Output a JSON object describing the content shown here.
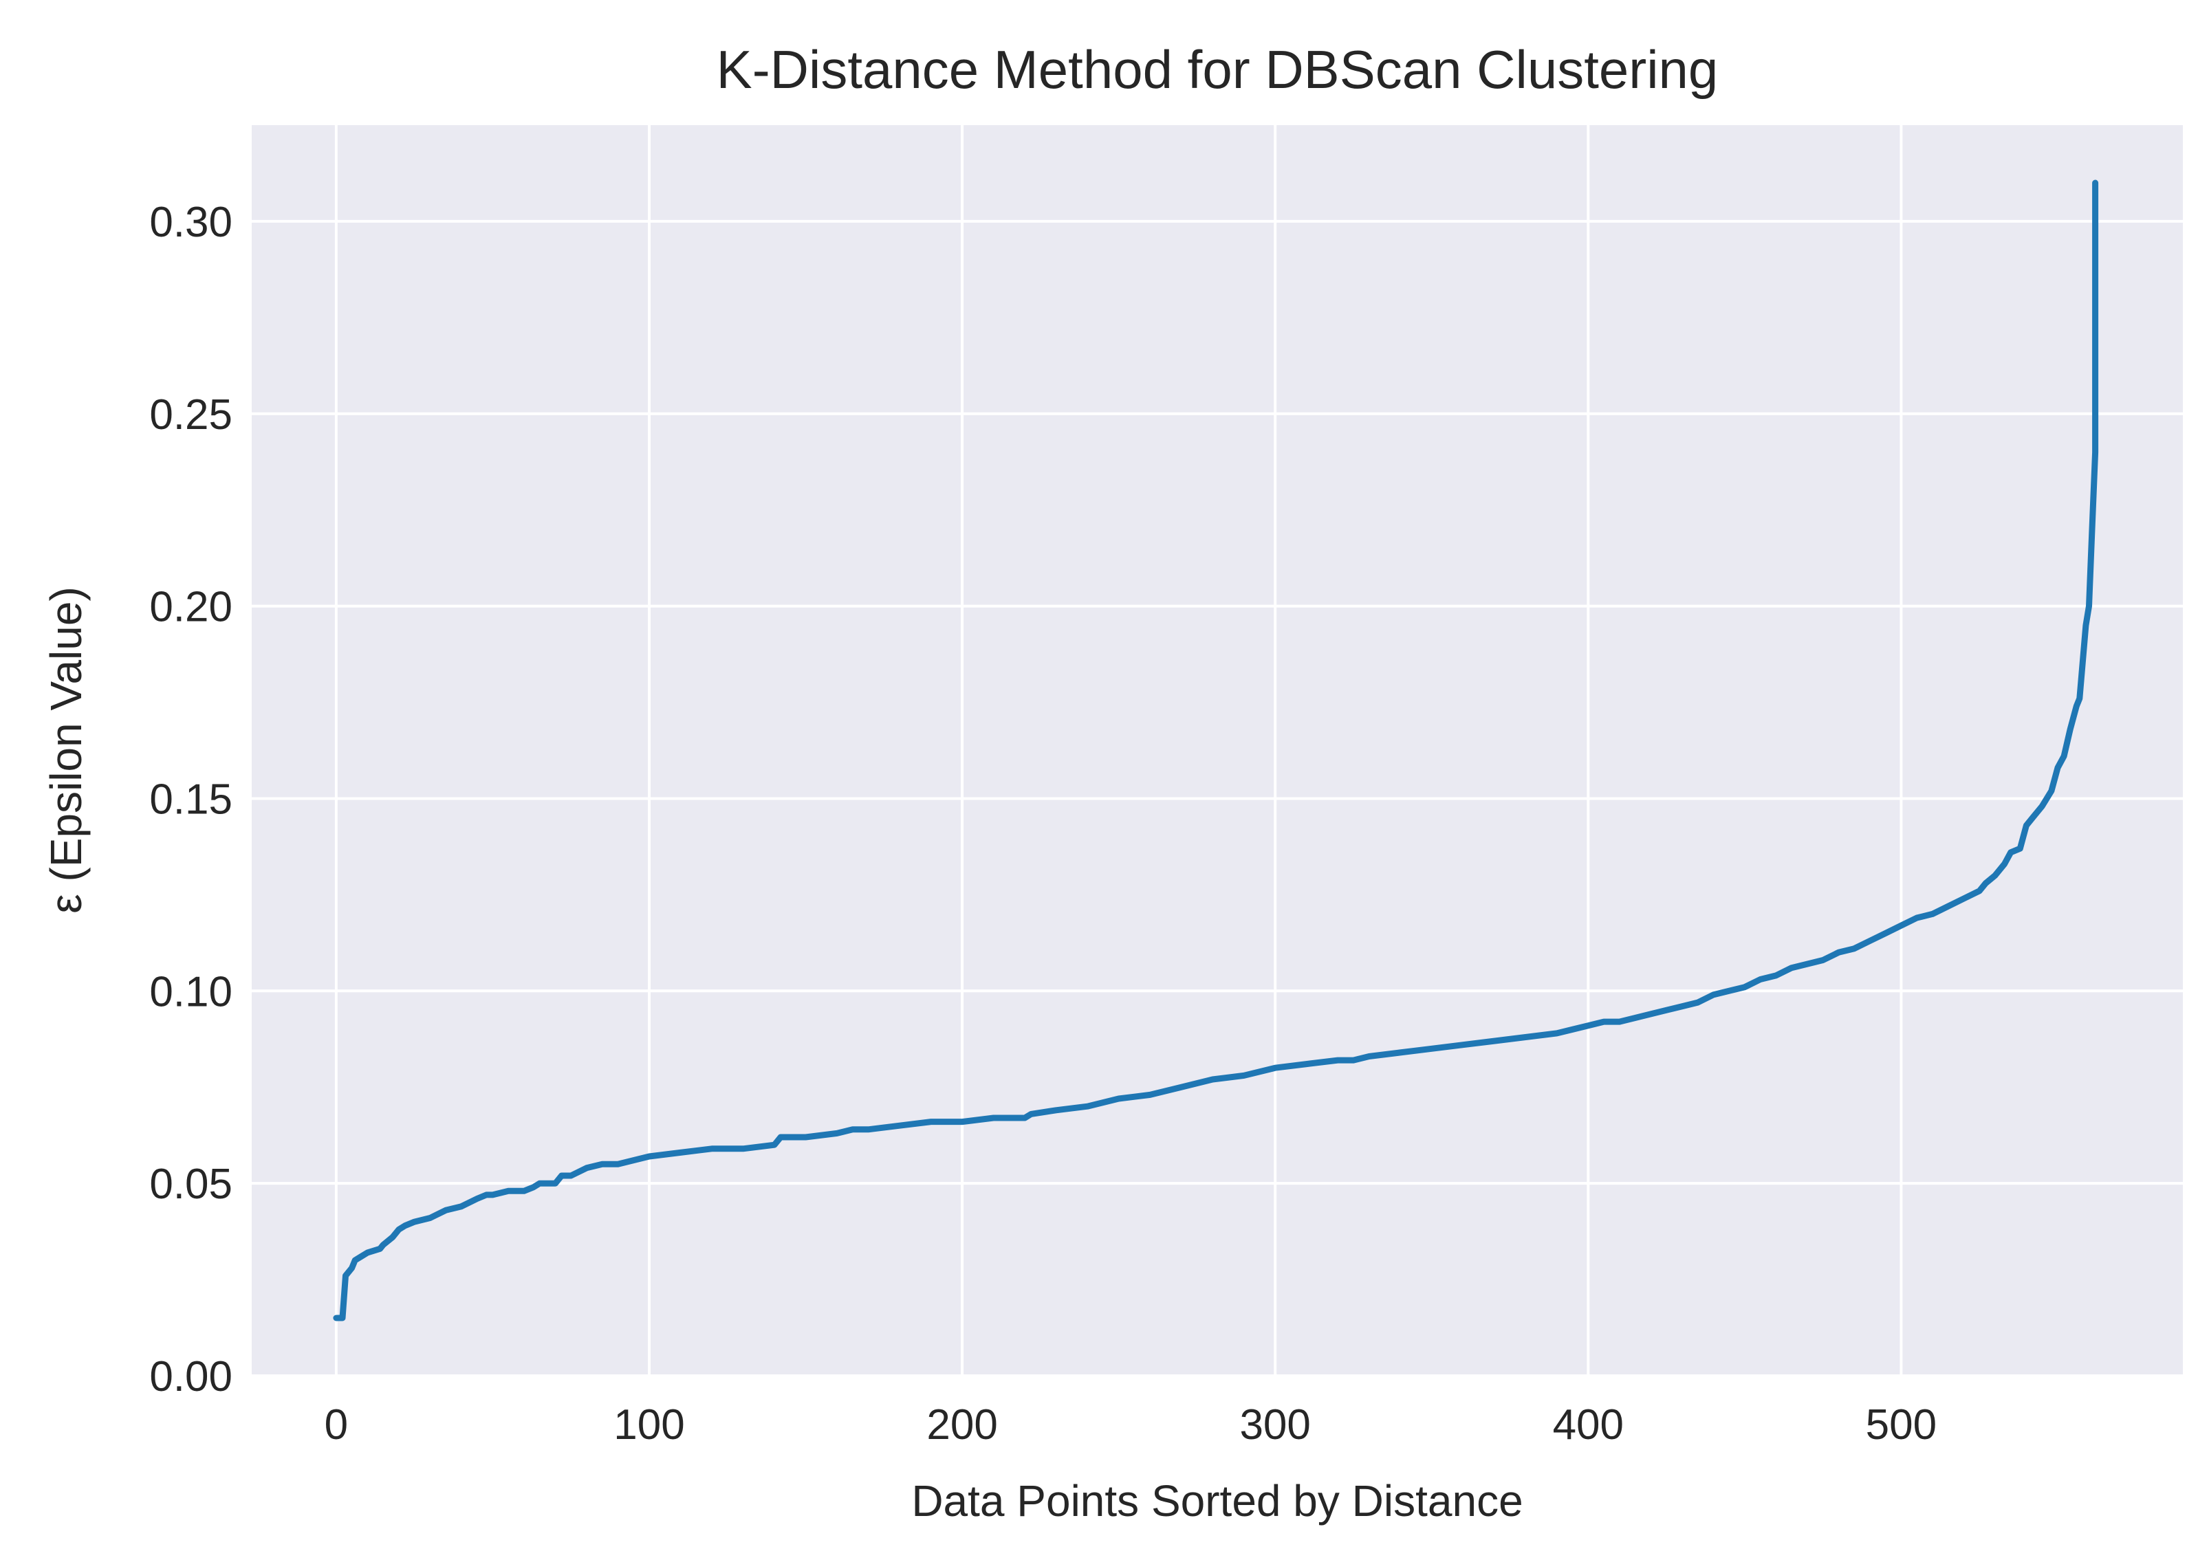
{
  "chart_data": {
    "type": "line",
    "title": "K-Distance Method for DBScan Clustering",
    "xlabel": "Data Points Sorted by Distance",
    "ylabel": "ε (Epsilon Value)",
    "xlim": [
      -27,
      590
    ],
    "ylim": [
      0.0,
      0.325
    ],
    "xticks": [
      0,
      100,
      200,
      300,
      400,
      500
    ],
    "xtick_labels": [
      "0",
      "100",
      "200",
      "300",
      "400",
      "500"
    ],
    "yticks": [
      0.0,
      0.05,
      0.1,
      0.15,
      0.2,
      0.25,
      0.3
    ],
    "ytick_labels": [
      "0.00",
      "0.05",
      "0.10",
      "0.15",
      "0.20",
      "0.25",
      "0.30"
    ],
    "grid": true,
    "background": "#EAEAF2",
    "grid_color": "#FFFFFF",
    "line_color": "#1F77B4",
    "series": [
      {
        "x": [
          0,
          2,
          3,
          5,
          6,
          8,
          10,
          14,
          15,
          18,
          20,
          22,
          25,
          30,
          35,
          40,
          45,
          48,
          50,
          55,
          60,
          63,
          65,
          70,
          72,
          75,
          80,
          85,
          90,
          95,
          100,
          110,
          120,
          130,
          140,
          142,
          150,
          160,
          165,
          170,
          180,
          190,
          200,
          210,
          220,
          222,
          230,
          240,
          250,
          260,
          270,
          280,
          290,
          300,
          310,
          320,
          325,
          330,
          340,
          350,
          360,
          370,
          380,
          390,
          400,
          405,
          410,
          415,
          420,
          425,
          430,
          435,
          440,
          445,
          450,
          455,
          460,
          465,
          470,
          475,
          480,
          485,
          490,
          495,
          500,
          505,
          510,
          515,
          520,
          525,
          527,
          530,
          533,
          535,
          538,
          540,
          542,
          545,
          548,
          550,
          552,
          554,
          556,
          557,
          559,
          560,
          561
        ],
        "y": [
          0.015,
          0.015,
          0.026,
          0.028,
          0.03,
          0.031,
          0.032,
          0.033,
          0.034,
          0.036,
          0.038,
          0.039,
          0.04,
          0.041,
          0.043,
          0.044,
          0.046,
          0.047,
          0.047,
          0.048,
          0.048,
          0.049,
          0.05,
          0.05,
          0.052,
          0.052,
          0.054,
          0.055,
          0.055,
          0.056,
          0.057,
          0.058,
          0.059,
          0.059,
          0.06,
          0.062,
          0.062,
          0.063,
          0.064,
          0.064,
          0.065,
          0.066,
          0.066,
          0.067,
          0.067,
          0.068,
          0.069,
          0.07,
          0.072,
          0.073,
          0.075,
          0.077,
          0.078,
          0.08,
          0.081,
          0.082,
          0.082,
          0.083,
          0.084,
          0.085,
          0.086,
          0.087,
          0.088,
          0.089,
          0.091,
          0.092,
          0.092,
          0.093,
          0.094,
          0.095,
          0.096,
          0.097,
          0.099,
          0.1,
          0.101,
          0.103,
          0.104,
          0.106,
          0.107,
          0.108,
          0.11,
          0.111,
          0.113,
          0.115,
          0.117,
          0.119,
          0.12,
          0.122,
          0.124,
          0.126,
          0.128,
          0.13,
          0.133,
          0.136,
          0.137,
          0.143,
          0.145,
          0.148,
          0.152,
          0.158,
          0.161,
          0.168,
          0.174,
          0.176,
          0.195,
          0.2,
          0.22
        ]
      }
    ],
    "tail": {
      "x": [
        561,
        562,
        562
      ],
      "y": [
        0.22,
        0.24,
        0.31
      ]
    }
  }
}
